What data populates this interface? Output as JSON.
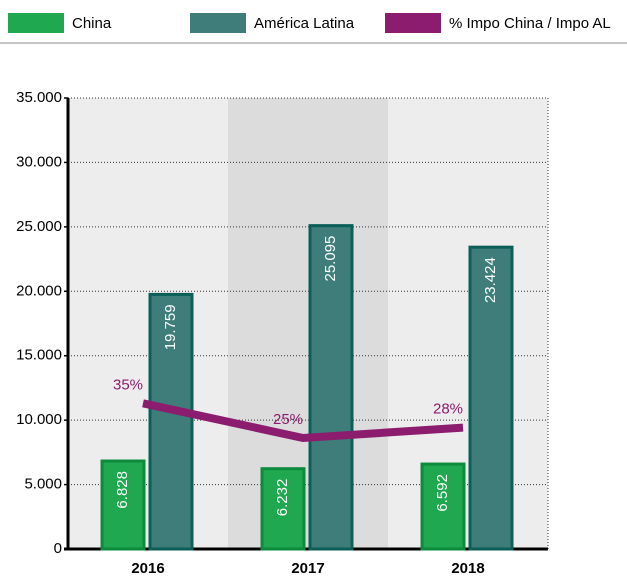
{
  "chart_data": {
    "type": "bar",
    "categories": [
      "2016",
      "2017",
      "2018"
    ],
    "series": [
      {
        "name": "China",
        "color": "#1fa84f",
        "values": [
          6828,
          6232,
          6592
        ],
        "value_labels": [
          "6.828",
          "6.232",
          "6.592"
        ]
      },
      {
        "name": "América Latina",
        "color": "#3e7d7a",
        "values": [
          19759,
          25095,
          23424
        ],
        "value_labels": [
          "19.759",
          "25.095",
          "23.424"
        ]
      },
      {
        "name": "% Impo China / Impo AL",
        "color": "#8b1c6e",
        "type": "line",
        "axis": "y2",
        "values": [
          35,
          25,
          28
        ],
        "value_labels": [
          "35%",
          "25%",
          "28%"
        ]
      }
    ],
    "ylim": [
      0,
      35000
    ],
    "yticks": [
      0,
      {
        "value": 5000,
        "label": "5.000"
      },
      {
        "value": 10000,
        "label": "10.000"
      },
      {
        "value": 15000,
        "label": "15.000"
      },
      {
        "value": 20000,
        "label": "20.000"
      },
      {
        "value": 25000,
        "label": "25.000"
      },
      {
        "value": 30000,
        "label": "30.000"
      },
      {
        "value": 35000,
        "label": "35.000"
      }
    ],
    "y2lim": [
      -7,
      123
    ],
    "grid": true
  }
}
